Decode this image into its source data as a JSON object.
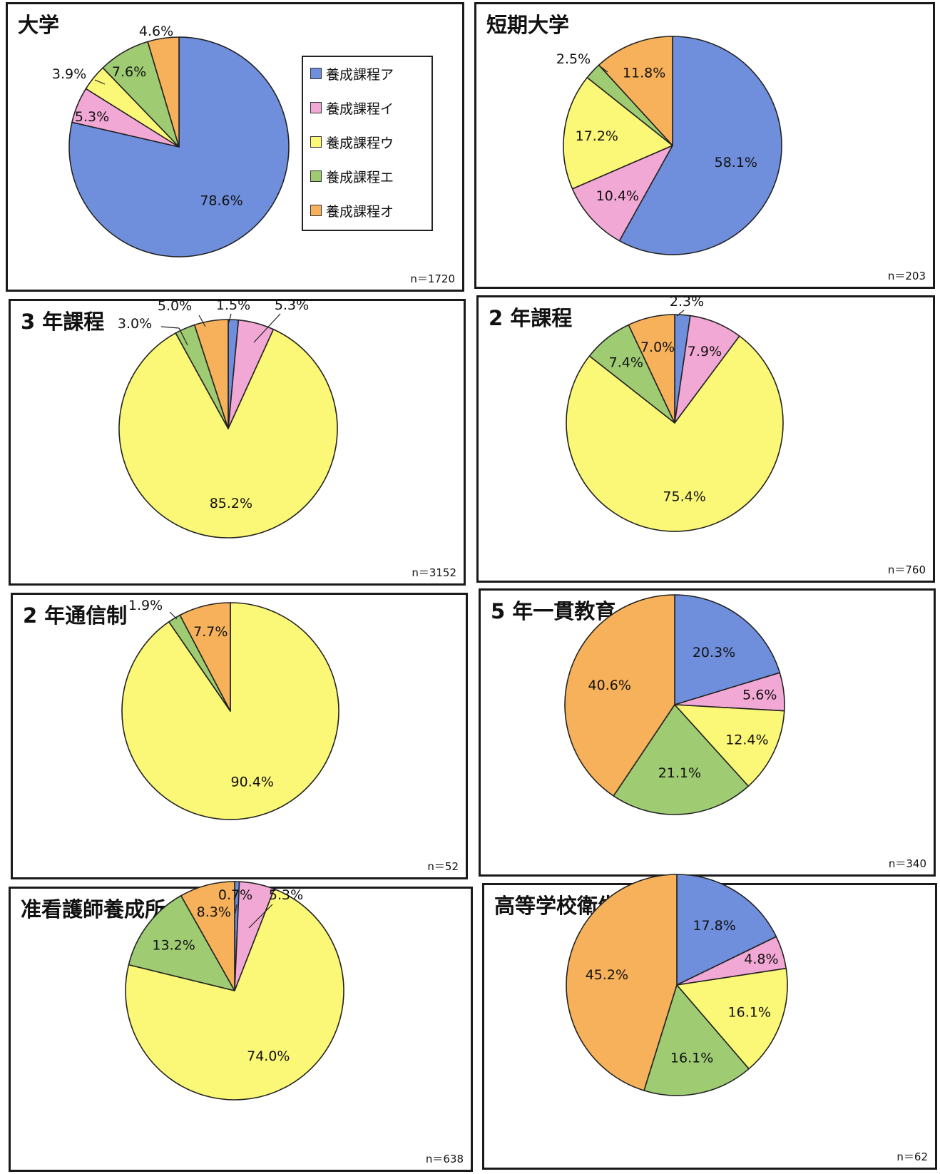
{
  "legend": {
    "items": [
      {
        "label": "養成課程ア",
        "color": "#6f8fdc"
      },
      {
        "label": "養成課程イ",
        "color": "#f2a8d4"
      },
      {
        "label": "養成課程ウ",
        "color": "#fbf777"
      },
      {
        "label": "養成課程エ",
        "color": "#9fcc73"
      },
      {
        "label": "養成課程オ",
        "color": "#f6b15a"
      }
    ]
  },
  "chart_data": [
    {
      "type": "pie",
      "title": "大学",
      "n_label": "n＝1720",
      "categories": [
        "養成課程ア",
        "養成課程イ",
        "養成課程ウ",
        "養成課程エ",
        "養成課程オ"
      ],
      "values": [
        78.6,
        5.3,
        3.9,
        7.6,
        4.6
      ],
      "labels": [
        "78.6%",
        "5.3%",
        "3.9%",
        "7.6%",
        "4.6%"
      ]
    },
    {
      "type": "pie",
      "title": "短期大学",
      "n_label": "n＝203",
      "categories": [
        "養成課程ア",
        "養成課程イ",
        "養成課程ウ",
        "養成課程エ",
        "養成課程オ"
      ],
      "values": [
        58.1,
        10.4,
        17.2,
        2.5,
        11.8
      ],
      "labels": [
        "58.1%",
        "10.4%",
        "17.2%",
        "2.5%",
        "11.8%"
      ]
    },
    {
      "type": "pie",
      "title": "3 年課程",
      "n_label": "n＝3152",
      "categories": [
        "養成課程ア",
        "養成課程イ",
        "養成課程ウ",
        "養成課程エ",
        "養成課程オ"
      ],
      "values": [
        1.5,
        5.3,
        85.2,
        3.0,
        5.0
      ],
      "labels": [
        "1.5%",
        "5.3%",
        "85.2%",
        "3.0%",
        "5.0%"
      ]
    },
    {
      "type": "pie",
      "title": "2 年課程",
      "n_label": "n＝760",
      "categories": [
        "養成課程ア",
        "養成課程イ",
        "養成課程ウ",
        "養成課程エ",
        "養成課程オ"
      ],
      "values": [
        2.3,
        7.9,
        75.4,
        7.4,
        7.0
      ],
      "labels": [
        "2.3%",
        "7.9%",
        "75.4%",
        "7.4%",
        "7.0%"
      ]
    },
    {
      "type": "pie",
      "title": "2 年通信制",
      "n_label": "n＝52",
      "categories": [
        "養成課程ア",
        "養成課程イ",
        "養成課程ウ",
        "養成課程エ",
        "養成課程オ"
      ],
      "values": [
        0,
        0,
        90.4,
        1.9,
        7.7
      ],
      "labels": [
        "",
        "",
        "90.4%",
        "1.9%",
        "7.7%"
      ]
    },
    {
      "type": "pie",
      "title": "5 年一貫教育",
      "n_label": "n＝340",
      "categories": [
        "養成課程ア",
        "養成課程イ",
        "養成課程ウ",
        "養成課程エ",
        "養成課程オ"
      ],
      "values": [
        20.3,
        5.6,
        12.4,
        21.1,
        40.6
      ],
      "labels": [
        "20.3%",
        "5.6%",
        "12.4%",
        "21.1%",
        "40.6%"
      ]
    },
    {
      "type": "pie",
      "title": "准看護師養成所",
      "n_label": "n＝638",
      "categories": [
        "養成課程ア",
        "養成課程イ",
        "養成課程ウ",
        "養成課程エ",
        "養成課程オ"
      ],
      "values": [
        0.7,
        5.3,
        74.0,
        13.2,
        8.3
      ],
      "labels": [
        "0.7%",
        "5.3%",
        "74.0%",
        "13.2%",
        "8.3%"
      ]
    },
    {
      "type": "pie",
      "title": "高等学校衛生看護科",
      "n_label": "n＝62",
      "categories": [
        "養成課程ア",
        "養成課程イ",
        "養成課程ウ",
        "養成課程エ",
        "養成課程オ"
      ],
      "values": [
        17.8,
        4.8,
        16.1,
        16.1,
        45.2
      ],
      "labels": [
        "17.8%",
        "4.8%",
        "16.1%",
        "16.1%",
        "45.2%"
      ]
    }
  ]
}
